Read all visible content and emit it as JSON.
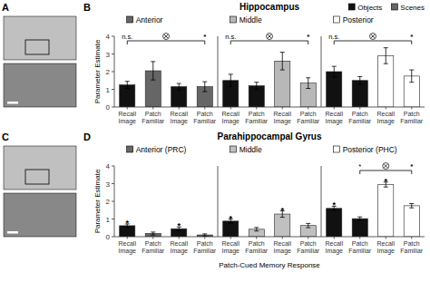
{
  "chart_data": [
    {
      "type": "image",
      "annotations": [
        {
          "type": "panel_label",
          "text": "A"
        }
      ]
    },
    {
      "type": "bar",
      "title": "Anterior",
      "categories": [
        "Recall\nImage",
        "Patch\nFamiliar",
        "Recall\nImage",
        "Patch\nFamiliar"
      ],
      "series": [
        {
          "name": "Objects",
          "color": "#111111",
          "values": [
            1.25,
            null,
            1.15,
            null
          ],
          "errors": [
            0.2,
            null,
            0.18,
            null
          ]
        },
        {
          "name": "Scenes",
          "color": "#666666",
          "values": [
            null,
            2.05,
            null,
            1.15
          ],
          "errors": [
            null,
            0.52,
            null,
            0.28
          ]
        }
      ],
      "ylim": [
        0,
        4
      ],
      "yticks": [
        0,
        1,
        2,
        3,
        4
      ],
      "ylabel": "Parameter Estimate",
      "legend": "upper right",
      "annotations": [
        {
          "type": "panel_label",
          "text": "B"
        },
        {
          "type": "row_title",
          "text": "Hippocampus"
        },
        {
          "type": "bracket",
          "from": 0,
          "to": 3,
          "left": "n.s.",
          "right": "*"
        }
      ]
    },
    {
      "type": "bar",
      "title": "Middle",
      "categories": [
        "Recall\nImage",
        "Patch\nFamiliar",
        "Recall\nImage",
        "Patch\nFamiliar"
      ],
      "series": [
        {
          "name": "Objects",
          "color": "#111111",
          "values": [
            1.5,
            1.2,
            null,
            null
          ],
          "errors": [
            0.35,
            0.2,
            null,
            null
          ]
        },
        {
          "name": "Scenes",
          "color": "#b8b8b8",
          "values": [
            null,
            null,
            2.6,
            1.35
          ],
          "errors": [
            null,
            null,
            0.5,
            0.3
          ]
        }
      ],
      "ylim": [
        0,
        4
      ],
      "yticks": [
        0,
        1,
        2,
        3,
        4
      ],
      "tick_labels": "x",
      "annotations": [
        {
          "type": "bracket",
          "from": 0,
          "to": 3,
          "left": "n.s.",
          "right": "*"
        }
      ]
    },
    {
      "type": "bar",
      "title": "Posterior",
      "categories": [
        "Recall\nImage",
        "Patch\nFamiliar",
        "Recall\nImage",
        "Patch\nFamiliar"
      ],
      "series": [
        {
          "name": "Objects",
          "color": "#111111",
          "values": [
            2.0,
            1.5,
            null,
            null
          ],
          "errors": [
            0.3,
            0.22,
            null,
            null
          ]
        },
        {
          "name": "Scenes",
          "color": "#ffffff",
          "values": [
            null,
            null,
            2.9,
            1.75
          ],
          "errors": [
            null,
            null,
            0.45,
            0.35
          ]
        }
      ],
      "ylim": [
        0,
        4
      ],
      "yticks": [
        0,
        1,
        2,
        3,
        4
      ],
      "tick_labels": "x",
      "annotations": [
        {
          "type": "bracket",
          "from": 0,
          "to": 3,
          "left": "n.s.",
          "right": "*"
        }
      ]
    },
    {
      "type": "image",
      "annotations": [
        {
          "type": "panel_label",
          "text": "C"
        }
      ]
    },
    {
      "type": "bar",
      "title": "Anterior (PRC)",
      "categories": [
        "Recall\nImage",
        "Patch\nFamiliar",
        "Recall\nImage",
        "Patch\nFamiliar"
      ],
      "series": [
        {
          "name": "Objects",
          "color": "#111111",
          "values": [
            0.62,
            null,
            0.45,
            null
          ],
          "errors": [
            0.1,
            null,
            0.1,
            null
          ]
        },
        {
          "name": "Scenes",
          "color": "#666666",
          "values": [
            null,
            0.18,
            null,
            0.1
          ],
          "errors": [
            null,
            0.08,
            null,
            0.06
          ]
        }
      ],
      "ylim": [
        0,
        4
      ],
      "yticks": [
        0,
        1,
        2,
        3,
        4
      ],
      "ylabel": "Parameter Estimate",
      "annotations": [
        {
          "type": "panel_label",
          "text": "D"
        },
        {
          "type": "row_title",
          "text": "Parahippocampal Gyrus"
        },
        {
          "type": "star",
          "text": "*",
          "category": 0
        },
        {
          "type": "star",
          "text": "*",
          "category": 2
        }
      ]
    },
    {
      "type": "bar",
      "title": "Middle",
      "categories": [
        "Recall\nImage",
        "Patch\nFamiliar",
        "Recall\nImage",
        "Patch\nFamiliar"
      ],
      "series": [
        {
          "name": "Objects",
          "color": "#111111",
          "values": [
            0.88,
            null,
            null,
            null
          ],
          "errors": [
            0.12,
            null,
            null,
            null
          ]
        },
        {
          "name": "Scenes",
          "color": "#c0c0c0",
          "values": [
            null,
            0.42,
            1.28,
            0.63
          ],
          "errors": [
            null,
            0.1,
            0.18,
            0.12
          ]
        }
      ],
      "ylim": [
        0,
        4
      ],
      "yticks": [
        0,
        1,
        2,
        3,
        4
      ],
      "tick_labels": "x",
      "xlabel": "Patch-Cued Memory Response",
      "annotations": [
        {
          "type": "star",
          "text": "*",
          "category": 0
        },
        {
          "type": "star",
          "text": "*",
          "category": 2
        }
      ]
    },
    {
      "type": "bar",
      "title": "Posterior (PHC)",
      "categories": [
        "Recall\nImage",
        "Patch\nFamiliar",
        "Recall\nImage",
        "Patch\nFamiliar"
      ],
      "series": [
        {
          "name": "Objects",
          "color": "#111111",
          "values": [
            1.6,
            1.02,
            null,
            null
          ],
          "errors": [
            0.12,
            0.1,
            null,
            null
          ]
        },
        {
          "name": "Scenes",
          "color": "#ffffff",
          "values": [
            null,
            null,
            2.95,
            1.75
          ],
          "errors": [
            null,
            null,
            0.14,
            0.12
          ]
        }
      ],
      "ylim": [
        0,
        4
      ],
      "yticks": [
        0,
        1,
        2,
        3,
        4
      ],
      "tick_labels": "x",
      "annotations": [
        {
          "type": "star",
          "text": "*",
          "category": 0
        },
        {
          "type": "star",
          "text": "*",
          "category": 2
        },
        {
          "type": "bracket",
          "from": 1,
          "to": 3,
          "left": "*",
          "right": "*"
        }
      ]
    }
  ]
}
